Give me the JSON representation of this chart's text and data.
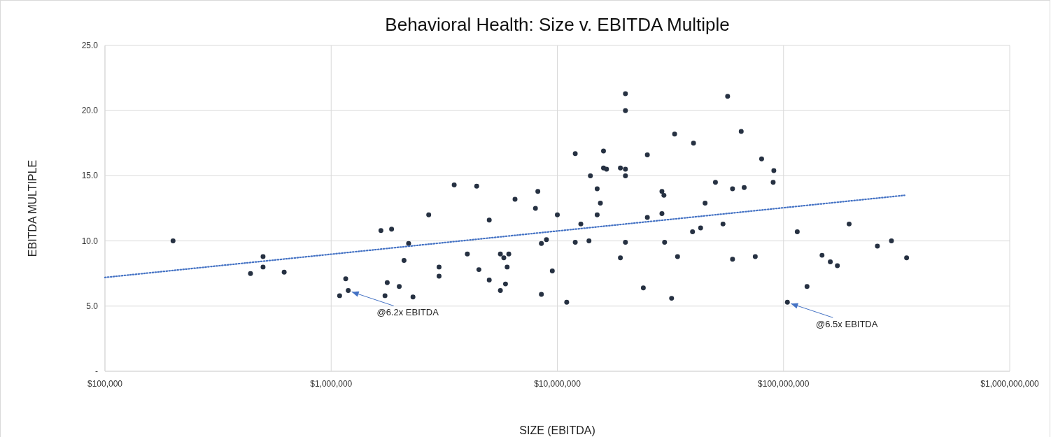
{
  "chart_data": {
    "type": "scatter",
    "title": "Behavioral Health: Size v. EBITDA Multiple",
    "xlabel": "SIZE  (EBITDA)",
    "ylabel": "EBITDA MULTIPLE",
    "log": "x",
    "grid": true,
    "marker": "circle",
    "xlim": [
      100000,
      1000000000
    ],
    "xticks": [
      {
        "value": 100000,
        "label": "$100,000"
      },
      {
        "value": 1000000,
        "label": "$1,000,000"
      },
      {
        "value": 10000000,
        "label": "$10,000,000"
      },
      {
        "value": 100000000,
        "label": "$100,000,000"
      },
      {
        "value": 1000000000,
        "label": "$1,000,000,000"
      }
    ],
    "ylim": [
      0,
      25
    ],
    "yticks": [
      {
        "value": 0,
        "label": "-"
      },
      {
        "value": 5,
        "label": "5.0"
      },
      {
        "value": 10,
        "label": "10.0"
      },
      {
        "value": 15,
        "label": "15.0"
      },
      {
        "value": 20,
        "label": "20.0"
      },
      {
        "value": 25,
        "label": "25.0"
      }
    ],
    "series": [
      {
        "color": "#263142",
        "x": [
          200000,
          500000,
          500000,
          440000,
          620000,
          1160000,
          1190000,
          1090000,
          3500000,
          4400000,
          2700000,
          1660000,
          1850000,
          6500000,
          8200000,
          8000000,
          10000000,
          5000000,
          2200000,
          2100000,
          4000000,
          5600000,
          5800000,
          6100000,
          8500000,
          8950000,
          3000000,
          3000000,
          4500000,
          6000000,
          9500000,
          1770000,
          2000000,
          5000000,
          5900000,
          5600000,
          1730000,
          2300000,
          8500000,
          11000000,
          20000000,
          20000000,
          56600000,
          33000000,
          65000000,
          40000000,
          12000000,
          16000000,
          25000000,
          80000000,
          16000000,
          16500000,
          19000000,
          20000000,
          20000000,
          90600000,
          90000000,
          14000000,
          15000000,
          15500000,
          15000000,
          12700000,
          12000000,
          13800000,
          20000000,
          19000000,
          25000000,
          29000000,
          29600000,
          29000000,
          29800000,
          34000000,
          45000000,
          50000000,
          59500000,
          67000000,
          39600000,
          43000000,
          54000000,
          59500000,
          75000000,
          24000000,
          32000000,
          115000000,
          195000000,
          148000000,
          161000000,
          173000000,
          260000000,
          300000000,
          350000000,
          127000000,
          104000000
        ],
        "values": [
          10.0,
          8.8,
          8.0,
          7.5,
          7.6,
          7.1,
          6.2,
          5.8,
          14.3,
          14.2,
          12.0,
          10.8,
          10.9,
          13.2,
          13.8,
          12.5,
          12.0,
          11.6,
          9.8,
          8.5,
          9.0,
          9.0,
          8.7,
          9.0,
          9.8,
          10.1,
          8.0,
          7.3,
          7.8,
          8.0,
          7.7,
          6.8,
          6.5,
          7.0,
          6.7,
          6.2,
          5.8,
          5.7,
          5.9,
          5.3,
          21.3,
          20.0,
          21.1,
          18.2,
          18.4,
          17.5,
          16.7,
          16.9,
          16.6,
          16.3,
          15.6,
          15.5,
          15.6,
          15.5,
          15.0,
          15.4,
          14.5,
          15.0,
          14.0,
          12.9,
          12.0,
          11.3,
          9.9,
          10.0,
          9.9,
          8.7,
          11.8,
          13.8,
          13.5,
          12.1,
          9.9,
          8.8,
          12.9,
          14.5,
          14.0,
          14.1,
          10.7,
          11.0,
          11.3,
          8.6,
          8.8,
          6.4,
          5.6,
          10.7,
          11.3,
          8.9,
          8.4,
          8.1,
          9.6,
          10.0,
          8.7,
          6.5,
          5.3
        ]
      },
      {
        "type": "line",
        "color": "#4472c4",
        "line_style": "dotted",
        "marker": "none",
        "x": [
          100000,
          343000000
        ],
        "values": [
          7.2,
          13.5
        ]
      }
    ],
    "annotations": [
      {
        "text": "@6.2x EBITDA",
        "x": 1190000,
        "y": 6.2
      },
      {
        "text": "@6.5x EBITDA",
        "x": 104000000,
        "y": 5.3
      }
    ]
  }
}
